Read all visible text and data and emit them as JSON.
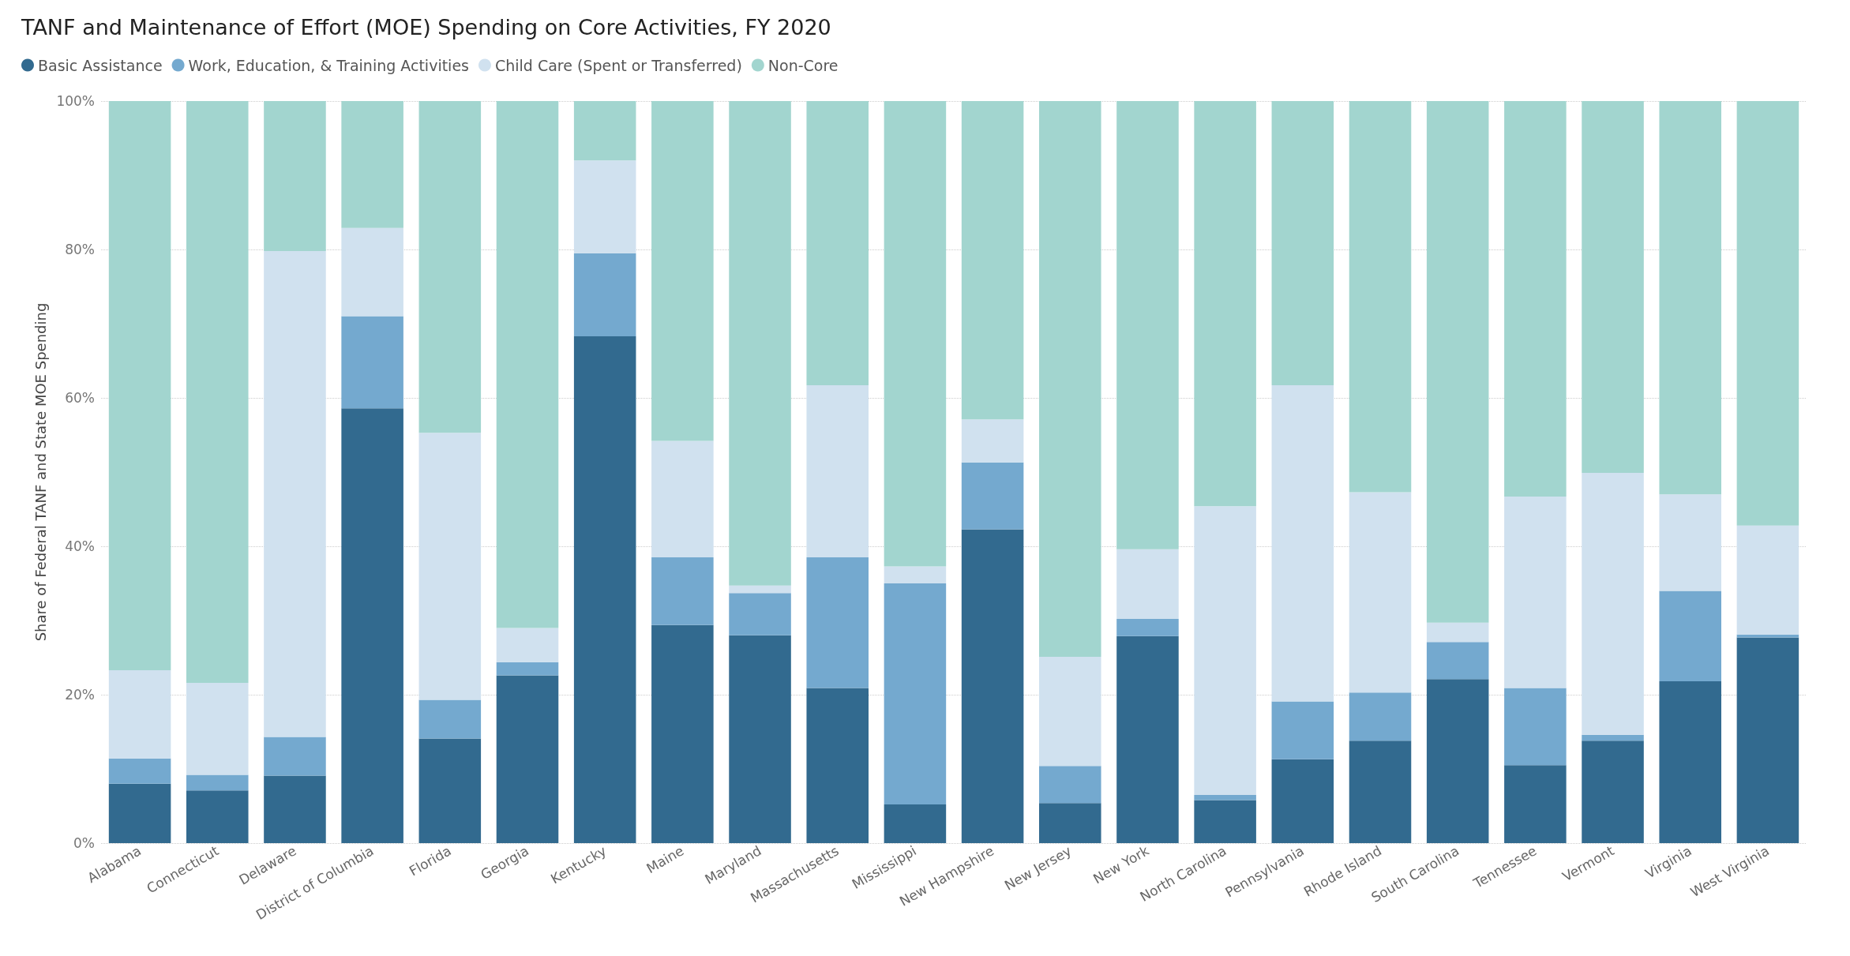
{
  "chart_data": {
    "type": "bar",
    "stacked": true,
    "title": "TANF and Maintenance of Effort (MOE) Spending on Core Activities, FY 2020",
    "ylabel": "Share of Federal TANF and State MOE Spending",
    "categories": [
      "Alabama",
      "Connecticut",
      "Delaware",
      "District of Columbia",
      "Florida",
      "Georgia",
      "Kentucky",
      "Maine",
      "Maryland",
      "Massachusetts",
      "Mississippi",
      "New Hampshire",
      "New Jersey",
      "New York",
      "North Carolina",
      "Pennsylvania",
      "Rhode Island",
      "South Carolina",
      "Tennessee",
      "Vermont",
      "Virginia",
      "West Virginia"
    ],
    "series": [
      {
        "name": "Basic Assistance",
        "color": "#326a8f",
        "values": [
          8.0,
          7.1,
          9.1,
          58.6,
          14.1,
          22.6,
          68.3,
          29.4,
          28.0,
          20.9,
          5.2,
          42.3,
          5.4,
          27.9,
          5.8,
          11.3,
          13.8,
          22.1,
          10.5,
          13.8,
          21.8,
          27.7
        ]
      },
      {
        "name": "Work, Education, & Training Activities",
        "color": "#74a9cf",
        "values": [
          3.4,
          2.1,
          5.2,
          12.4,
          5.2,
          1.8,
          11.2,
          9.1,
          5.7,
          17.6,
          29.8,
          9.0,
          5.0,
          2.3,
          0.7,
          7.8,
          6.5,
          5.0,
          10.4,
          0.8,
          12.2,
          0.4
        ]
      },
      {
        "name": "Child Care (Spent or Transferred)",
        "color": "#d0e1ef",
        "values": [
          11.9,
          12.4,
          65.5,
          11.9,
          36.0,
          4.6,
          12.5,
          15.7,
          1.0,
          23.2,
          2.3,
          5.8,
          14.7,
          9.4,
          38.9,
          42.6,
          27.0,
          2.6,
          25.8,
          35.3,
          13.0,
          14.7
        ]
      },
      {
        "name": "Non-Core",
        "color": "#a2d5cf",
        "values": [
          76.7,
          78.4,
          20.2,
          17.1,
          44.7,
          71.0,
          8.0,
          45.8,
          65.3,
          38.3,
          62.7,
          42.9,
          74.9,
          60.4,
          54.6,
          38.3,
          52.7,
          70.3,
          53.3,
          50.1,
          53.0,
          57.2
        ]
      }
    ],
    "ylim": [
      0,
      100
    ],
    "yticks": [
      {
        "value": 0,
        "label": "0%"
      },
      {
        "value": 20,
        "label": "20%"
      },
      {
        "value": 40,
        "label": "40%"
      },
      {
        "value": 60,
        "label": "60%"
      },
      {
        "value": 80,
        "label": "80%"
      },
      {
        "value": 100,
        "label": "100%"
      }
    ],
    "grid": "y",
    "legend": "top left"
  }
}
